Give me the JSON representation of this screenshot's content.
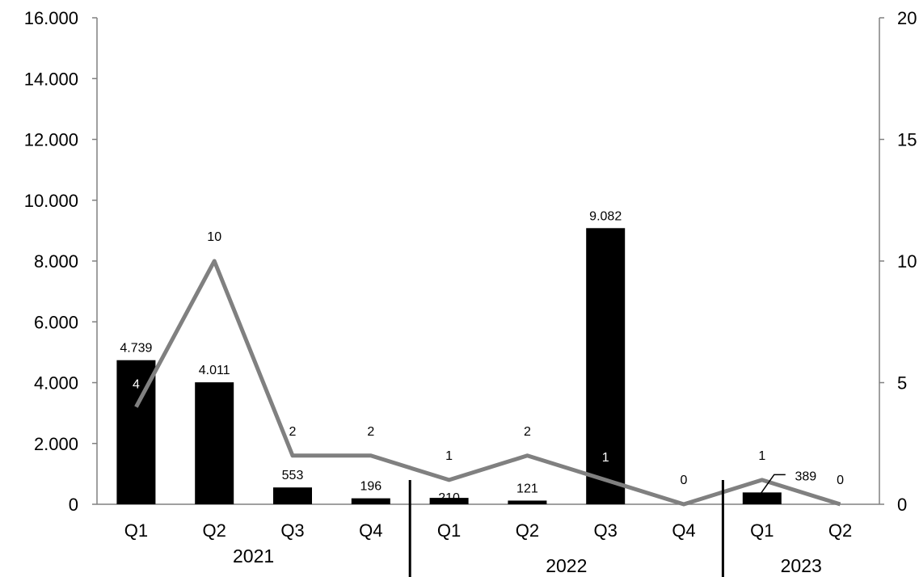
{
  "chart_data": {
    "type": "bar",
    "categories": [
      "Q1",
      "Q2",
      "Q3",
      "Q4",
      "Q1",
      "Q2",
      "Q3",
      "Q4",
      "Q1",
      "Q2"
    ],
    "groups": [
      {
        "label": "2021",
        "count": 4
      },
      {
        "label": "2022",
        "count": 4
      },
      {
        "label": "2023",
        "count": 2
      }
    ],
    "series": [
      {
        "type": "bar",
        "axis": "left",
        "color": "#000000",
        "values": [
          4739,
          4011,
          553,
          196,
          210,
          121,
          9082,
          null,
          389,
          null
        ],
        "labels": [
          "4.739",
          "4.011",
          "553",
          "196",
          "210",
          "121",
          "9.082",
          "",
          "389",
          ""
        ]
      },
      {
        "type": "line",
        "axis": "right",
        "color": "#808080",
        "values": [
          4,
          10,
          2,
          2,
          1,
          2,
          1,
          0,
          1,
          0
        ],
        "labels": [
          "4",
          "10",
          "2",
          "2",
          "1",
          "2",
          "1",
          "0",
          "1",
          "0"
        ]
      }
    ],
    "y_left": {
      "min": 0,
      "max": 16000,
      "step": 2000,
      "ticks": [
        "0",
        "2.000",
        "4.000",
        "6.000",
        "8.000",
        "10.000",
        "12.000",
        "14.000",
        "16.000"
      ]
    },
    "y_right": {
      "min": 0,
      "max": 20,
      "step": 5,
      "ticks": [
        "0",
        "5",
        "10",
        "15",
        "20"
      ]
    },
    "grid": false,
    "legend": "none"
  }
}
